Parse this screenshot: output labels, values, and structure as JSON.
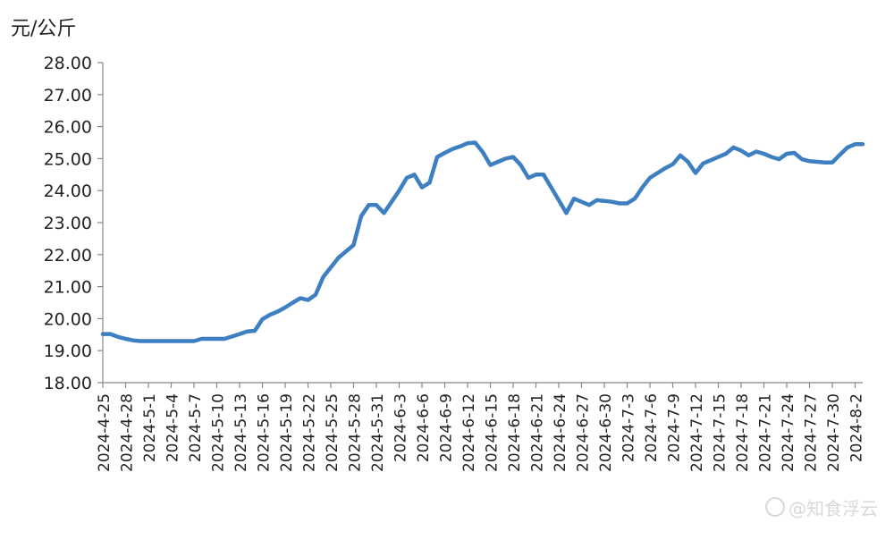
{
  "chart_data": {
    "type": "line",
    "ylabel": "元/公斤",
    "ylim": [
      18,
      28
    ],
    "yticks": [
      "18.00",
      "19.00",
      "20.00",
      "21.00",
      "22.00",
      "23.00",
      "24.00",
      "25.00",
      "26.00",
      "27.00",
      "28.00"
    ],
    "xticks": [
      "2024-4-25",
      "2024-4-28",
      "2024-5-1",
      "2024-5-4",
      "2024-5-7",
      "2024-5-10",
      "2024-5-13",
      "2024-5-16",
      "2024-5-19",
      "2024-5-22",
      "2024-5-25",
      "2024-5-28",
      "2024-5-31",
      "2024-6-3",
      "2024-6-6",
      "2024-6-9",
      "2024-6-12",
      "2024-6-15",
      "2024-6-18",
      "2024-6-21",
      "2024-6-24",
      "2024-6-27",
      "2024-6-30",
      "2024-7-3",
      "2024-7-6",
      "2024-7-9",
      "2024-7-12",
      "2024-7-15",
      "2024-7-18",
      "2024-7-21",
      "2024-7-24",
      "2024-7-27",
      "2024-7-30",
      "2024-8-2"
    ],
    "grid": false,
    "legend": "none",
    "line_color": "#3d7fc0",
    "series": [
      {
        "x": [
          "2024-4-25",
          "2024-4-26",
          "2024-4-27",
          "2024-4-28",
          "2024-4-29",
          "2024-4-30",
          "2024-5-1",
          "2024-5-2",
          "2024-5-3",
          "2024-5-4",
          "2024-5-5",
          "2024-5-6",
          "2024-5-7",
          "2024-5-8",
          "2024-5-9",
          "2024-5-10",
          "2024-5-11",
          "2024-5-12",
          "2024-5-13",
          "2024-5-14",
          "2024-5-15",
          "2024-5-16",
          "2024-5-17",
          "2024-5-18",
          "2024-5-19",
          "2024-5-20",
          "2024-5-21",
          "2024-5-22",
          "2024-5-23",
          "2024-5-24",
          "2024-5-25",
          "2024-5-26",
          "2024-5-27",
          "2024-5-28",
          "2024-5-29",
          "2024-5-30",
          "2024-5-31",
          "2024-6-1",
          "2024-6-2",
          "2024-6-3",
          "2024-6-4",
          "2024-6-5",
          "2024-6-6",
          "2024-6-7",
          "2024-6-8",
          "2024-6-9",
          "2024-6-10",
          "2024-6-11",
          "2024-6-12",
          "2024-6-13",
          "2024-6-14",
          "2024-6-15",
          "2024-6-16",
          "2024-6-17",
          "2024-6-18",
          "2024-6-19",
          "2024-6-20",
          "2024-6-21",
          "2024-6-22",
          "2024-6-23",
          "2024-6-24",
          "2024-6-25",
          "2024-6-26",
          "2024-6-27",
          "2024-6-28",
          "2024-6-29",
          "2024-6-30",
          "2024-7-1",
          "2024-7-2",
          "2024-7-3",
          "2024-7-4",
          "2024-7-5",
          "2024-7-6",
          "2024-7-7",
          "2024-7-8",
          "2024-7-9",
          "2024-7-10",
          "2024-7-11",
          "2024-7-12",
          "2024-7-13",
          "2024-7-14",
          "2024-7-15",
          "2024-7-16",
          "2024-7-17",
          "2024-7-18",
          "2024-7-19",
          "2024-7-20",
          "2024-7-21",
          "2024-7-22",
          "2024-7-23",
          "2024-7-24",
          "2024-7-25",
          "2024-7-26",
          "2024-7-27",
          "2024-7-28",
          "2024-7-29",
          "2024-7-30",
          "2024-7-31",
          "2024-8-1",
          "2024-8-2",
          "2024-8-3"
        ],
        "values": [
          19.52,
          19.52,
          19.43,
          19.37,
          19.32,
          19.3,
          19.3,
          19.3,
          19.3,
          19.3,
          19.3,
          19.3,
          19.3,
          19.37,
          19.37,
          19.37,
          19.37,
          19.44,
          19.52,
          19.6,
          19.62,
          19.98,
          20.12,
          20.22,
          20.35,
          20.5,
          20.64,
          20.58,
          20.75,
          21.3,
          21.6,
          21.9,
          22.1,
          22.3,
          23.2,
          23.55,
          23.55,
          23.3,
          23.65,
          24.0,
          24.4,
          24.5,
          24.1,
          24.25,
          25.05,
          25.18,
          25.3,
          25.38,
          25.48,
          25.5,
          25.2,
          24.8,
          24.9,
          25.0,
          25.05,
          24.8,
          24.4,
          24.5,
          24.5,
          24.1,
          23.7,
          23.3,
          23.75,
          23.65,
          23.55,
          23.7,
          23.68,
          23.65,
          23.6,
          23.6,
          23.75,
          24.1,
          24.4,
          24.55,
          24.7,
          24.82,
          25.1,
          24.9,
          24.55,
          24.85,
          24.95,
          25.05,
          25.15,
          25.35,
          25.25,
          25.1,
          25.22,
          25.15,
          25.05,
          24.98,
          25.15,
          25.18,
          24.98,
          24.92,
          24.9,
          24.88,
          24.88,
          25.12,
          25.35,
          25.45,
          25.45
        ]
      }
    ]
  },
  "watermark": "@知食浮云"
}
